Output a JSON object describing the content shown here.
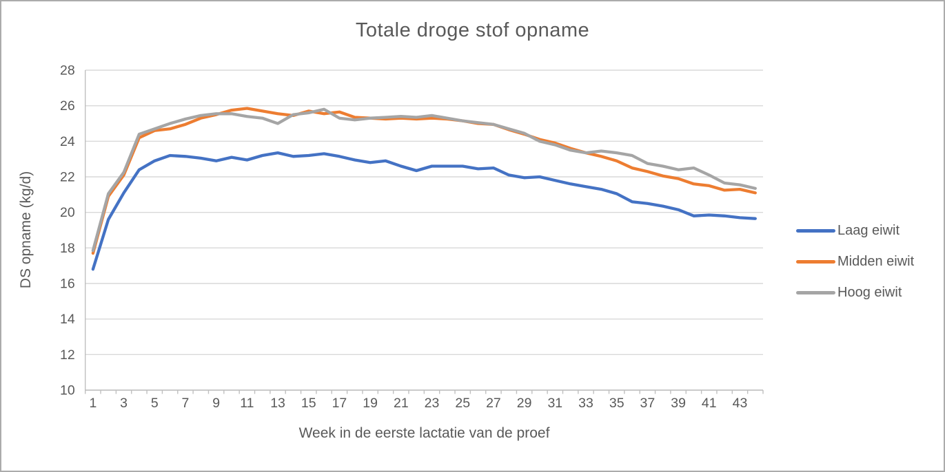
{
  "chart_data": {
    "type": "line",
    "title": "Totale droge stof opname",
    "xlabel": "Week in de eerste lactatie van de proef",
    "ylabel": "DS opname (kg/d)",
    "x": [
      1,
      2,
      3,
      4,
      5,
      6,
      7,
      8,
      9,
      10,
      11,
      12,
      13,
      14,
      15,
      16,
      17,
      18,
      19,
      20,
      21,
      22,
      23,
      24,
      25,
      26,
      27,
      28,
      29,
      30,
      31,
      32,
      33,
      34,
      35,
      36,
      37,
      38,
      39,
      40,
      41,
      42,
      43,
      44
    ],
    "x_tick_labels": [
      "1",
      "3",
      "5",
      "7",
      "9",
      "11",
      "13",
      "15",
      "17",
      "19",
      "21",
      "23",
      "25",
      "27",
      "29",
      "31",
      "33",
      "35",
      "37",
      "39",
      "41",
      "43"
    ],
    "ylim": [
      10,
      28
    ],
    "y_ticks": [
      10,
      12,
      14,
      16,
      18,
      20,
      22,
      24,
      26,
      28
    ],
    "grid": "horizontal-only",
    "legend_position": "right",
    "colors": {
      "background": "#FFFFFF",
      "frame_border": "#ABABAB",
      "gridline": "#D9D9D9",
      "axis_line": "#BFBFBF",
      "axis_text": "#595959"
    },
    "series": [
      {
        "name": "Laag eiwit",
        "color": "#4472C4",
        "values": [
          16.8,
          19.6,
          21.1,
          22.4,
          22.9,
          23.2,
          23.15,
          23.05,
          22.9,
          23.1,
          22.95,
          23.2,
          23.35,
          23.15,
          23.2,
          23.3,
          23.15,
          22.95,
          22.8,
          22.9,
          22.6,
          22.35,
          22.6,
          22.6,
          22.6,
          22.45,
          22.5,
          22.1,
          21.95,
          22.0,
          21.8,
          21.6,
          21.45,
          21.3,
          21.05,
          20.6,
          20.5,
          20.35,
          20.15,
          19.8,
          19.85,
          19.8,
          19.7,
          19.65
        ]
      },
      {
        "name": "Midden eiwit",
        "color": "#ED7D31",
        "values": [
          17.7,
          20.9,
          22.1,
          24.2,
          24.6,
          24.7,
          24.95,
          25.3,
          25.5,
          25.75,
          25.85,
          25.7,
          25.55,
          25.45,
          25.7,
          25.55,
          25.65,
          25.35,
          25.3,
          25.25,
          25.3,
          25.25,
          25.3,
          25.25,
          25.15,
          25.0,
          24.95,
          24.65,
          24.4,
          24.1,
          23.9,
          23.6,
          23.35,
          23.15,
          22.9,
          22.5,
          22.3,
          22.05,
          21.9,
          21.6,
          21.5,
          21.25,
          21.3,
          21.1
        ]
      },
      {
        "name": "Hoog eiwit",
        "color": "#A5A5A5",
        "values": [
          17.85,
          21.05,
          22.25,
          24.4,
          24.7,
          25.0,
          25.25,
          25.45,
          25.55,
          25.55,
          25.4,
          25.3,
          25.0,
          25.5,
          25.6,
          25.8,
          25.3,
          25.2,
          25.3,
          25.35,
          25.4,
          25.35,
          25.45,
          25.3,
          25.15,
          25.05,
          24.95,
          24.7,
          24.45,
          24.0,
          23.8,
          23.5,
          23.35,
          23.45,
          23.35,
          23.2,
          22.75,
          22.6,
          22.4,
          22.5,
          22.1,
          21.65,
          21.55,
          21.35
        ]
      }
    ]
  }
}
